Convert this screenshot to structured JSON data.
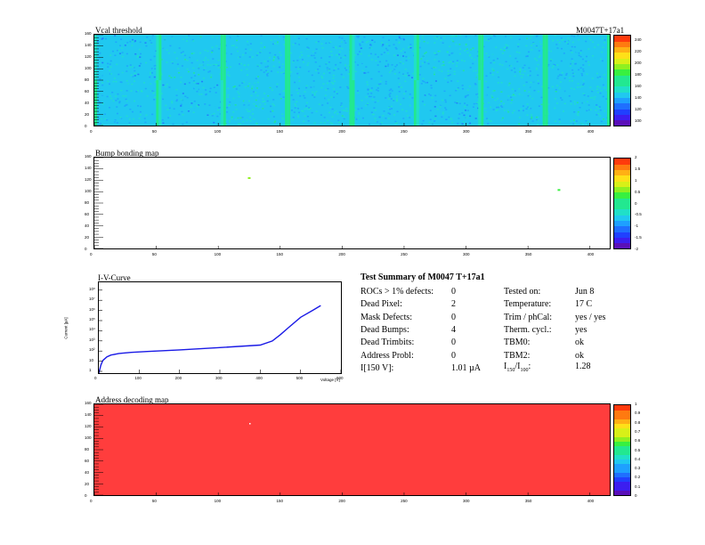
{
  "module_id": "M0047T+17a1",
  "colors": {
    "heat_blue": "#1f6fe8",
    "address_red": "#ff3d3d",
    "iv_line": "#1a1ae6"
  },
  "chart_data": [
    {
      "type": "heatmap",
      "title": "Vcal threshold",
      "x_ticks": [
        "0",
        "50",
        "100",
        "150",
        "200",
        "250",
        "300",
        "350",
        "400"
      ],
      "y_ticks": [
        "0",
        "20",
        "40",
        "60",
        "80",
        "100",
        "120",
        "140",
        "160"
      ],
      "xlim": [
        0,
        416
      ],
      "ylim": [
        0,
        160
      ],
      "z_ticks": [
        "100",
        "120",
        "140",
        "160",
        "180",
        "200",
        "220",
        "240"
      ],
      "zlim": [
        90,
        250
      ],
      "grid": "2 x 8 readout chips",
      "note": "mostly uniform blue, slightly lighter columns near chip borders"
    },
    {
      "type": "heatmap",
      "title": "Bump bonding map",
      "x_ticks": [
        "0",
        "50",
        "100",
        "150",
        "200",
        "250",
        "300",
        "350",
        "400"
      ],
      "y_ticks": [
        "0",
        "20",
        "40",
        "60",
        "80",
        "100",
        "120",
        "140",
        "160"
      ],
      "xlim": [
        0,
        416
      ],
      "ylim": [
        0,
        160
      ],
      "z_ticks": [
        "-2",
        "-1.5",
        "-1",
        "-0.5",
        "0",
        "0.5",
        "1",
        "1.5",
        "2"
      ],
      "zlim": [
        -2,
        2
      ],
      "points": [
        {
          "x": 125,
          "y": 124,
          "z": 0.6
        },
        {
          "x": 375,
          "y": 103,
          "z": 0.3
        }
      ]
    },
    {
      "type": "line",
      "title": "I-V-Curve",
      "xlabel": "Voltage [V]",
      "ylabel": "Current [µA]",
      "xlim": [
        0,
        600
      ],
      "x_ticks": [
        "0",
        "100",
        "200",
        "300",
        "400",
        "500",
        "600"
      ],
      "ylim_log": [
        0.1,
        800
      ],
      "y_ticks": [
        "1",
        "10",
        "10²",
        "10³",
        "10⁴",
        "10⁵",
        "10⁶",
        "10⁷",
        "10⁸"
      ],
      "series": [
        {
          "x": [
            0,
            5,
            10,
            20,
            30,
            50,
            80,
            120,
            200,
            300,
            400,
            430,
            450,
            470,
            500,
            530,
            550
          ],
          "y": [
            0.1,
            0.22,
            0.35,
            0.5,
            0.6,
            0.7,
            0.78,
            0.85,
            1.0,
            1.25,
            1.6,
            2.4,
            4.5,
            9,
            25,
            50,
            80
          ]
        }
      ]
    },
    {
      "type": "heatmap",
      "title": "Address decoding map",
      "x_ticks": [
        "0",
        "50",
        "100",
        "150",
        "200",
        "250",
        "300",
        "350",
        "400"
      ],
      "y_ticks": [
        "0",
        "20",
        "40",
        "60",
        "80",
        "100",
        "120",
        "140",
        "160"
      ],
      "xlim": [
        0,
        416
      ],
      "ylim": [
        0,
        160
      ],
      "z_ticks": [
        "0",
        "0.1",
        "0.2",
        "0.3",
        "0.4",
        "0.5",
        "0.6",
        "0.7",
        "0.8",
        "0.9",
        "1"
      ],
      "zlim": [
        0,
        1
      ],
      "fill_value": 1,
      "note": "uniform red across the whole module, one white dead pixel"
    }
  ],
  "summary": {
    "title": "Test Summary of M0047     T+17a1",
    "left": [
      {
        "label": "ROCs > 1% defects:",
        "value": "0"
      },
      {
        "label": "Dead Pixel:",
        "value": "2"
      },
      {
        "label": "Mask Defects:",
        "value": "0"
      },
      {
        "label": "Dead Bumps:",
        "value": "4"
      },
      {
        "label": "Dead Trimbits:",
        "value": "0"
      },
      {
        "label": "Address Probl:",
        "value": "0"
      },
      {
        "label": "I[150 V]:",
        "value": "1.01 µA"
      }
    ],
    "right": [
      {
        "label": "Tested on:",
        "value": "Jun 8"
      },
      {
        "label": "Temperature:",
        "value": "17 C"
      },
      {
        "label": "Trim / phCal:",
        "value": "yes / yes"
      },
      {
        "label": "Therm. cycl.:",
        "value": "yes"
      },
      {
        "label": "TBM0:",
        "value": "ok"
      },
      {
        "label": "TBM2:",
        "value": "ok"
      }
    ],
    "ratio_label_main": "I",
    "ratio_sub1": "150",
    "ratio_sub2": "100",
    "ratio_value": "1.28"
  }
}
